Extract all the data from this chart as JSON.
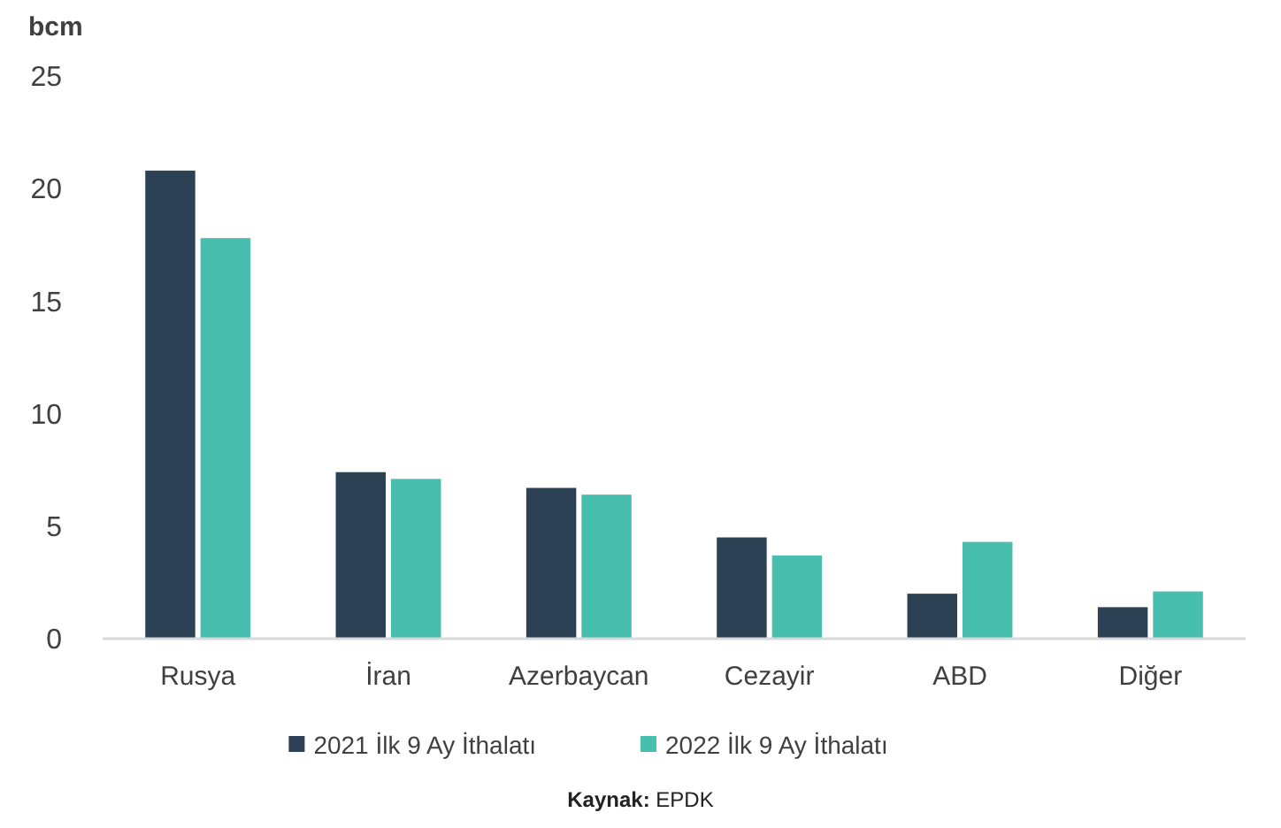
{
  "chart_data": {
    "type": "bar",
    "ylabel": "bcm",
    "categories": [
      "Rusya",
      "İran",
      "Azerbaycan",
      "Cezayir",
      "ABD",
      "Diğer"
    ],
    "series": [
      {
        "name": "2021 İlk 9 Ay İthalatı",
        "color": "#2d4154",
        "values": [
          20.8,
          7.4,
          6.7,
          4.5,
          2.0,
          1.4
        ]
      },
      {
        "name": "2022 İlk 9 Ay İthalatı",
        "color": "#48bfae",
        "values": [
          17.8,
          7.1,
          6.4,
          3.7,
          4.3,
          2.1
        ]
      }
    ],
    "ylim": [
      0,
      25
    ],
    "yticks": [
      0,
      5,
      10,
      15,
      20,
      25
    ],
    "grid": false,
    "legend": "bottom",
    "annotations": [
      "Kaynak: EPDK"
    ]
  }
}
